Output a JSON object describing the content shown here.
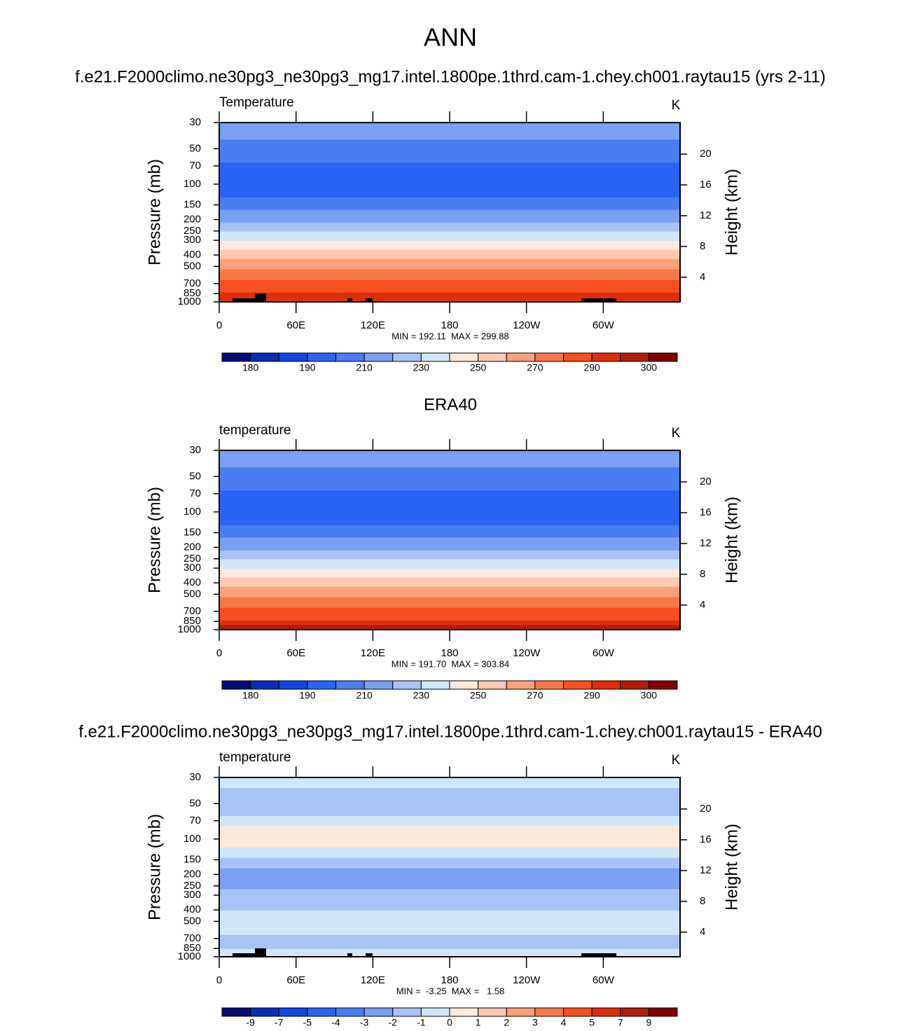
{
  "title": "ANN",
  "chart_data": [
    {
      "type": "contour",
      "title": "f.e21.F2000climo.ne30pg3_ne30pg3_mg17.intel.1800pe.1thrd.cam-1.chey.ch001.raytau15 (yrs 2-11)",
      "label_left": "Temperature",
      "label_right": "K",
      "ylabel": "Pressure (mb)",
      "y2label": "Height (km)",
      "xlim": [
        0,
        360
      ],
      "xticks": [
        0,
        {
          "value": 60,
          "label": "60E"
        },
        {
          "value": 120,
          "label": "120E"
        },
        180,
        {
          "value": 240,
          "label": "120W"
        },
        {
          "value": 300,
          "label": "60W"
        }
      ],
      "ylim": [
        30,
        1000
      ],
      "ylog": true,
      "yticks": [
        30,
        50,
        70,
        100,
        150,
        200,
        250,
        300,
        400,
        500,
        700,
        850,
        1000
      ],
      "y2lim": [
        0.8,
        24.1
      ],
      "y2ticks": [
        4,
        8,
        12,
        16,
        20
      ],
      "stats": "MIN = 192.11  MAX = 299.88",
      "band_edges": [
        30,
        42,
        66,
        130,
        166,
        213,
        254,
        304,
        363,
        434,
        532,
        654,
        837,
        1000
      ],
      "band_colors": [
        "#7aa0f5",
        "#4a7df2",
        "#2864f5",
        "#4a7df2",
        "#7aa0f5",
        "#a8c4f7",
        "#d2e6fa",
        "#fde9dc",
        "#fcc8b0",
        "#faa07a",
        "#f87848",
        "#f8501e",
        "#de2e0a"
      ],
      "colorbar_colors": [
        "#050a7a",
        "#0a2eb8",
        "#0f46e6",
        "#2864f5",
        "#4a7df2",
        "#7aa0f5",
        "#a8c4f7",
        "#d2e6fa",
        "#fde9dc",
        "#fcc8b0",
        "#faa07a",
        "#f87848",
        "#f8501e",
        "#de2e0a",
        "#b01e08",
        "#820000"
      ],
      "colorbar_labels": [
        180,
        190,
        210,
        230,
        250,
        270,
        290,
        300
      ]
    },
    {
      "type": "contour",
      "title": "ERA40",
      "label_left": "temperature",
      "label_right": "K",
      "ylabel": "Pressure (mb)",
      "y2label": "Height (km)",
      "xlim": [
        0,
        360
      ],
      "xticks": [
        0,
        {
          "value": 60,
          "label": "60E"
        },
        {
          "value": 120,
          "label": "120E"
        },
        180,
        {
          "value": 240,
          "label": "120W"
        },
        {
          "value": 300,
          "label": "60W"
        }
      ],
      "ylim": [
        30,
        1000
      ],
      "ylog": true,
      "yticks": [
        30,
        50,
        70,
        100,
        150,
        200,
        250,
        300,
        400,
        500,
        700,
        850,
        1000
      ],
      "y2lim": [
        0.8,
        24.1
      ],
      "y2ticks": [
        4,
        8,
        12,
        16,
        20
      ],
      "stats": "MIN = 191.70  MAX = 303.84",
      "band_edges": [
        30,
        42,
        66,
        130,
        166,
        213,
        254,
        304,
        363,
        434,
        532,
        654,
        837,
        920,
        1000
      ],
      "band_colors": [
        "#7aa0f5",
        "#4a7df2",
        "#2864f5",
        "#4a7df2",
        "#7aa0f5",
        "#a8c4f7",
        "#d2e6fa",
        "#fde9dc",
        "#fcc8b0",
        "#faa07a",
        "#f87848",
        "#f8501e",
        "#de2e0a",
        "#b01e08"
      ],
      "colorbar_colors": [
        "#050a7a",
        "#0a2eb8",
        "#0f46e6",
        "#2864f5",
        "#4a7df2",
        "#7aa0f5",
        "#a8c4f7",
        "#d2e6fa",
        "#fde9dc",
        "#fcc8b0",
        "#faa07a",
        "#f87848",
        "#f8501e",
        "#de2e0a",
        "#b01e08",
        "#820000"
      ],
      "colorbar_labels": [
        180,
        190,
        210,
        230,
        250,
        270,
        290,
        300
      ]
    },
    {
      "type": "contour",
      "title": "f.e21.F2000climo.ne30pg3_ne30pg3_mg17.intel.1800pe.1thrd.cam-1.chey.ch001.raytau15 - ERA40",
      "label_left": "temperature",
      "label_right": "K",
      "ylabel": "Pressure (mb)",
      "y2label": "Height (km)",
      "xlim": [
        0,
        360
      ],
      "xticks": [
        0,
        {
          "value": 60,
          "label": "60E"
        },
        {
          "value": 120,
          "label": "120E"
        },
        180,
        {
          "value": 240,
          "label": "120W"
        },
        {
          "value": 300,
          "label": "60W"
        }
      ],
      "ylim": [
        30,
        1000
      ],
      "ylog": true,
      "yticks": [
        30,
        50,
        70,
        100,
        150,
        200,
        250,
        300,
        400,
        500,
        700,
        850,
        1000
      ],
      "y2lim": [
        0.8,
        24.1
      ],
      "y2ticks": [
        4,
        8,
        12,
        16,
        20
      ],
      "stats": "MIN =  -3.25  MAX =   1.58",
      "band_edges": [
        30,
        37,
        64,
        78,
        118,
        145,
        178,
        268,
        405,
        654,
        860,
        1000
      ],
      "band_colors": [
        "#d2e6fa",
        "#a8c4f7",
        "#d2e6fa",
        "#fde9dc",
        "#d2e6fa",
        "#a8c4f7",
        "#7aa0f5",
        "#a8c4f7",
        "#d2e6fa",
        "#a8c4f7",
        "#d2e6fa"
      ],
      "colorbar_colors": [
        "#050a7a",
        "#0a2eb8",
        "#0f46e6",
        "#2864f5",
        "#4a7df2",
        "#7aa0f5",
        "#a8c4f7",
        "#d2e6fa",
        "#fde9dc",
        "#fcc8b0",
        "#faa07a",
        "#f87848",
        "#f8501e",
        "#de2e0a",
        "#b01e08",
        "#820000"
      ],
      "colorbar_labels": [
        -9,
        -7,
        -5,
        -4,
        -3,
        -2,
        -1,
        0,
        1,
        2,
        3,
        4,
        5,
        7,
        9
      ]
    }
  ]
}
